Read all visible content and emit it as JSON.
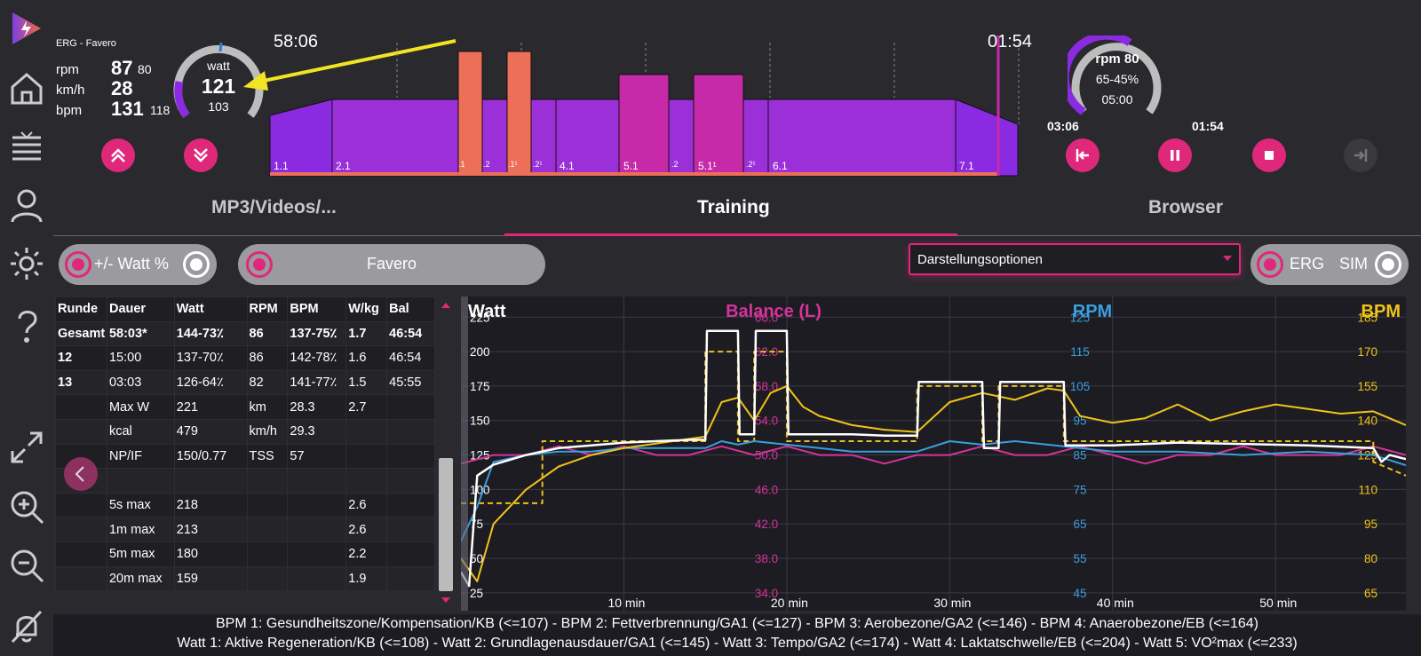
{
  "device_name": "ERG - Favero",
  "metrics": [
    {
      "label": "rpm",
      "value": "87",
      "sub": "80"
    },
    {
      "label": "km/h",
      "value": "28",
      "sub": ""
    },
    {
      "label": "bpm",
      "value": "131",
      "sub": "118"
    }
  ],
  "power_gauge": {
    "unit": "watt",
    "value": "121",
    "target": "103",
    "level": 0.55
  },
  "elapsed_time": "58:06",
  "remaining_time": "01:54",
  "interval_labels": [
    "1.1",
    "2.1",
    ".1",
    ".2",
    ".1¹",
    ".2¹",
    "4.1",
    "5.1",
    ".2",
    "5.1¹",
    ".2¹",
    "6.1",
    "7.1"
  ],
  "rpm_gauge": {
    "line1": "rpm 80",
    "line2": "65-45%",
    "line3": "05:00",
    "level": 0.7
  },
  "segment_times": {
    "left": "03:06",
    "right": "01:54"
  },
  "tabs": [
    {
      "label": "MP3/Videos/..."
    },
    {
      "label": "Training"
    },
    {
      "label": "Browser"
    }
  ],
  "controls": {
    "watt_percent": "+/- Watt %",
    "device": "Favero",
    "display_options": "Darstellungsoptionen",
    "erg": "ERG",
    "sim": "SIM"
  },
  "table": {
    "headers": [
      "Runde",
      "Dauer",
      "Watt",
      "RPM",
      "BPM",
      "W/kg",
      "Bal"
    ],
    "rows": [
      [
        "Gesamt",
        "58:03*",
        "144-73٪",
        "86",
        "137-75٪",
        "1.7",
        "46:54"
      ],
      [
        "12",
        "15:00",
        "137-70٪",
        "86",
        "142-78٪",
        "1.6",
        "46:54"
      ],
      [
        "13",
        "03:03",
        "126-64٪",
        "82",
        "141-77٪",
        "1.5",
        "45:55"
      ],
      [
        "",
        "Max W",
        "221",
        "km",
        "28.3",
        "2.7",
        ""
      ],
      [
        "",
        "kcal",
        "479",
        "km/h",
        "29.3",
        "",
        ""
      ],
      [
        "",
        "NP/IF",
        "150/0.77",
        "TSS",
        "57",
        "",
        ""
      ],
      [
        "",
        "",
        "",
        "",
        "",
        "",
        ""
      ],
      [
        "",
        "5s max",
        "218",
        "",
        "",
        "2.6",
        ""
      ],
      [
        "",
        "1m max",
        "213",
        "",
        "",
        "2.6",
        ""
      ],
      [
        "",
        "5m max",
        "180",
        "",
        "",
        "2.2",
        ""
      ],
      [
        "",
        "20m max",
        "159",
        "",
        "",
        "1.9",
        ""
      ]
    ]
  },
  "chart_data": {
    "type": "line",
    "titles": {
      "watt": "Watt",
      "balance": "Balance (L)",
      "rpm": "RPM",
      "bpm": "BPM"
    },
    "colors": {
      "watt": "#ffffff",
      "balance": "#d4349a",
      "rpm": "#3a9ee0",
      "bpm": "#f0c419",
      "target": "#e8c020"
    },
    "x_ticks": [
      "10 min",
      "20 min",
      "30 min",
      "40 min",
      "50 min"
    ],
    "x_tick_values": [
      10,
      20,
      30,
      40,
      50
    ],
    "xlim": [
      0,
      58
    ],
    "watt_ticks": [
      "225",
      "200",
      "175",
      "150",
      "125",
      "100",
      "75",
      "50",
      "25"
    ],
    "balance_ticks": [
      "66.0",
      "62.0",
      "58.0",
      "54.0",
      "50.0",
      "46.0",
      "42.0",
      "38.0",
      "34.0"
    ],
    "rpm_ticks": [
      "125",
      "115",
      "105",
      "95",
      "85",
      "75",
      "65",
      "55",
      "45"
    ],
    "bpm_ticks": [
      "185",
      "170",
      "155",
      "140",
      "125",
      "110",
      "95",
      "80",
      "65"
    ],
    "ylim_watt": [
      12,
      240
    ],
    "series": [
      {
        "name": "Watt",
        "x": [
          0,
          0.5,
          1,
          2,
          4,
          6,
          8,
          10,
          12,
          14,
          15,
          15.1,
          17,
          17.1,
          18,
          18.1,
          20,
          20.1,
          22,
          24,
          26,
          28,
          28.1,
          32,
          32.1,
          33,
          33.1,
          37,
          37.1,
          40,
          44,
          48,
          52,
          56,
          56.5,
          57,
          58
        ],
        "values": [
          40,
          30,
          110,
          118,
          125,
          130,
          132,
          134,
          135,
          136,
          136,
          215,
          215,
          140,
          140,
          215,
          215,
          140,
          140,
          140,
          139,
          139,
          178,
          178,
          130,
          130,
          178,
          178,
          132,
          132,
          134,
          133,
          132,
          130,
          120,
          125,
          122
        ]
      },
      {
        "name": "Target Watt",
        "x": [
          0,
          1,
          1,
          5,
          5,
          15,
          15,
          17,
          17,
          18,
          18,
          20,
          20,
          28,
          28,
          32,
          32,
          33,
          33,
          37,
          37,
          56,
          56,
          58
        ],
        "values": [
          90,
          90,
          90,
          90,
          135,
          135,
          200,
          200,
          135,
          135,
          200,
          200,
          135,
          135,
          175,
          175,
          135,
          135,
          175,
          175,
          135,
          135,
          120,
          110
        ]
      },
      {
        "name": "RPM",
        "x": [
          0,
          1,
          2,
          4,
          6,
          8,
          10,
          15,
          16,
          17,
          18,
          20,
          22,
          24,
          28,
          30,
          32,
          34,
          36,
          40,
          44,
          48,
          52,
          56,
          58
        ],
        "values": [
          60,
          70,
          83,
          85,
          86,
          86,
          87,
          87,
          89,
          88,
          89,
          88,
          87,
          86,
          86,
          89,
          88,
          89,
          88,
          86,
          86,
          85,
          86,
          85,
          82
        ]
      },
      {
        "name": "BPM",
        "x": [
          0,
          1,
          2,
          4,
          6,
          8,
          10,
          12,
          15,
          16,
          17,
          18,
          19,
          20,
          21,
          22,
          24,
          26,
          28,
          30,
          32,
          34,
          36,
          37,
          38,
          40,
          42,
          44,
          46,
          48,
          50,
          52,
          54,
          56,
          58
        ],
        "values": [
          80,
          70,
          95,
          110,
          120,
          125,
          128,
          130,
          133,
          148,
          150,
          140,
          152,
          155,
          146,
          142,
          138,
          136,
          135,
          148,
          152,
          149,
          154,
          153,
          142,
          139,
          141,
          147,
          140,
          144,
          147,
          145,
          143,
          144,
          138
        ]
      },
      {
        "name": "Balance (L)",
        "x": [
          0,
          2,
          4,
          6,
          8,
          10,
          12,
          14,
          16,
          18,
          20,
          22,
          24,
          26,
          28,
          30,
          32,
          34,
          36,
          38,
          40,
          42,
          44,
          46,
          48,
          50,
          52,
          54,
          56,
          58
        ],
        "values": [
          49,
          50,
          50,
          51,
          50,
          51,
          50,
          50,
          51,
          50,
          51,
          50,
          50,
          49,
          50,
          50,
          51,
          50,
          50,
          51,
          50,
          49,
          50,
          50,
          51,
          50,
          50,
          50,
          51,
          50
        ]
      }
    ]
  },
  "legend_lines": [
    "BPM 1: Gesundheitszone/Kompensation/KB (<=107) - BPM 2: Fettverbrennung/GA1 (<=127) - BPM 3: Aerobezone/GA2 (<=146) - BPM 4: Anaerobezone/EB (<=164)",
    "Watt 1: Aktive Regeneration/KB (<=108) - Watt 2: Grundlagenausdauer/GA1 (<=145) - Watt 3: Tempo/GA2 (<=174) - Watt 4: Laktatschwelle/EB (<=204) - Watt 5: VO²max (<=233)"
  ]
}
